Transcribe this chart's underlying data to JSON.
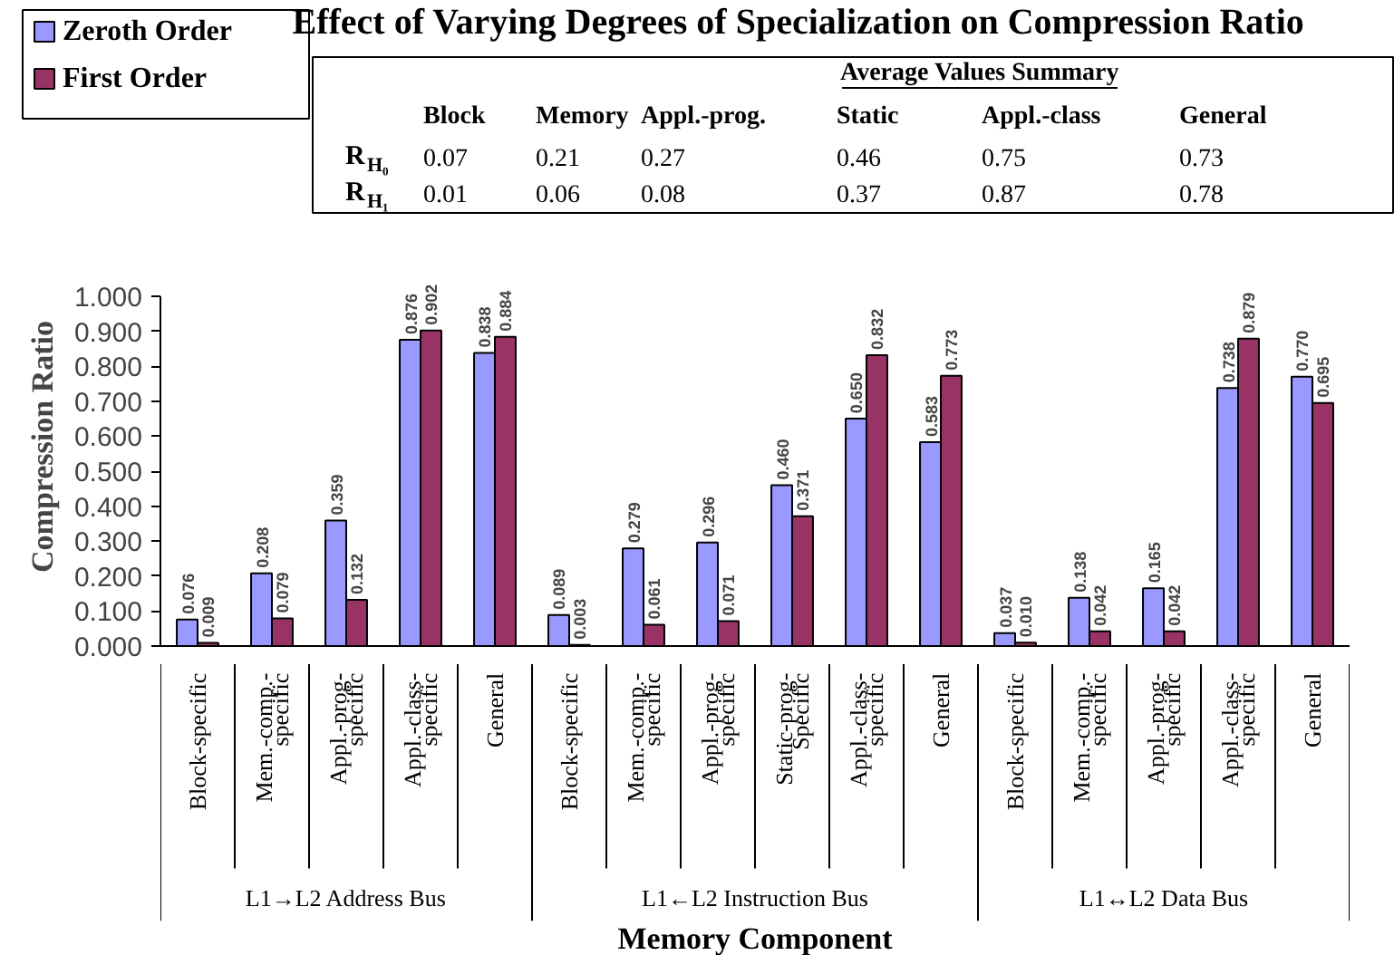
{
  "chart_data": {
    "type": "bar",
    "title": "Effect of Varying Degrees of Specialization on Compression Ratio",
    "xlabel": "Memory Component",
    "ylabel": "Compression Ratio",
    "categories": [
      "Block-specific",
      "Mem.-comp.-\nspecific",
      "Appl.-prog-\nspecific",
      "Appl.-class-\nspecific",
      "General",
      "Block-specific",
      "Mem.-comp.-\nspecific",
      "Appl.-prog-\nspecific",
      "Static-prog-\nSpecific",
      "Appl.-class-\nspecific",
      "General",
      "Block-specific",
      "Mem.-comp.-\nspecific",
      "Appl.-prog-\nspecific",
      "Appl.-class-\nspecific",
      "General"
    ],
    "series": [
      {
        "name": "Zeroth Order",
        "color": "#9999ff",
        "values": [
          0.076,
          0.208,
          0.359,
          0.876,
          0.838,
          0.089,
          0.279,
          0.296,
          0.46,
          0.65,
          0.583,
          0.037,
          0.138,
          0.165,
          0.738,
          0.77
        ],
        "value_labels": [
          "0.076",
          "0.208",
          "0.359",
          "0.876",
          "0.838",
          "0.089",
          "0.279",
          "0.296",
          "0.460",
          "0.650",
          "0.583",
          "0.037",
          "0.138",
          "0.165",
          "0.738",
          "0.770"
        ]
      },
      {
        "name": "First Order",
        "color": "#993366",
        "values": [
          0.009,
          0.079,
          0.132,
          0.902,
          0.884,
          0.003,
          0.061,
          0.071,
          0.371,
          0.832,
          0.773,
          0.01,
          0.042,
          0.042,
          0.879,
          0.695
        ],
        "value_labels": [
          "0.009",
          "0.079",
          "0.132",
          "0.902",
          "0.884",
          "0.003",
          "0.061",
          "0.071",
          "0.371",
          "0.832",
          "0.773",
          "0.010",
          "0.042",
          "0.042",
          "0.879",
          "0.695"
        ]
      }
    ],
    "ylim": [
      0,
      1
    ],
    "yticks": [
      {
        "value": 0,
        "label": "0.000"
      },
      {
        "value": 0.1,
        "label": "0.100"
      },
      {
        "value": 0.2,
        "label": "0.200"
      },
      {
        "value": 0.3,
        "label": "0.300"
      },
      {
        "value": 0.4,
        "label": "0.400"
      },
      {
        "value": 0.5,
        "label": "0.500"
      },
      {
        "value": 0.6,
        "label": "0.600"
      },
      {
        "value": 0.7,
        "label": "0.700"
      },
      {
        "value": 0.8,
        "label": "0.800"
      },
      {
        "value": 0.9,
        "label": "0.900"
      },
      {
        "value": 1,
        "label": "1.000"
      }
    ],
    "grid": false,
    "legend": "top left",
    "annotations": [
      "Average Values Summary",
      "Block",
      "Memory",
      "Appl.-prog.",
      "Static",
      "Appl.-class",
      "General",
      "R$_{H₀}$",
      "0.07",
      "0.21",
      "0.27",
      "0.46",
      "0.75",
      "0.73",
      "R$_{H₁}$",
      "0.01",
      "0.06",
      "0.08",
      "0.37",
      "0.87",
      "0.78",
      "L1→L2 Address Bus",
      "L1←L2 Instruction Bus",
      "L1↔L2 Data Bus"
    ]
  }
}
